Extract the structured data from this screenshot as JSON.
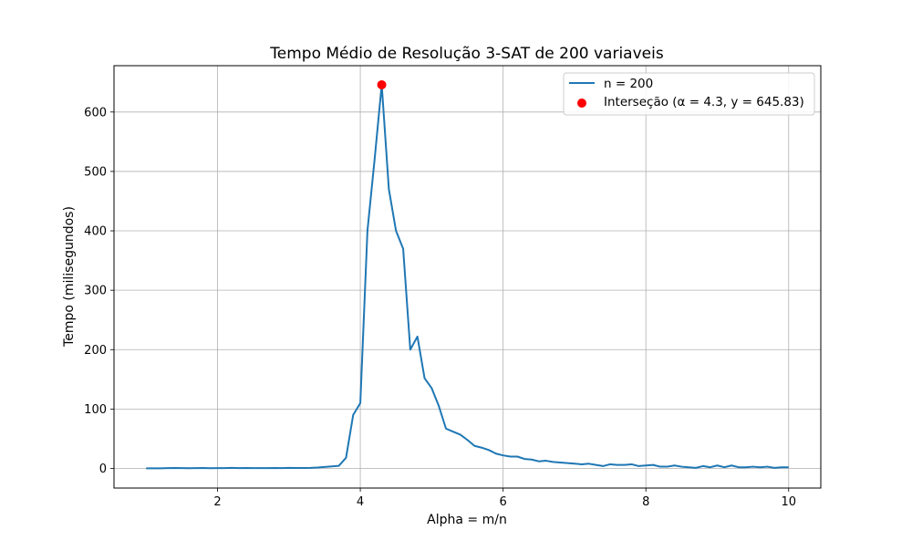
{
  "chart_data": {
    "type": "line",
    "title": "Tempo Médio de Resolução 3-SAT de 200 variaveis",
    "xlabel": "Alpha = m/n",
    "ylabel": "Tempo (milisegundos)",
    "xlim": [
      0.55,
      10.45
    ],
    "ylim": [
      -33,
      678
    ],
    "xticks": [
      2,
      4,
      6,
      8,
      10
    ],
    "yticks": [
      0,
      100,
      200,
      300,
      400,
      500,
      600
    ],
    "grid": true,
    "legend_position": "top-right",
    "colors": {
      "line": "#1f77b4",
      "marker": "#ff0000"
    },
    "series": [
      {
        "name": "n = 200",
        "x": [
          1.0,
          1.1,
          1.2,
          1.3,
          1.4,
          1.5,
          1.6,
          1.7,
          1.8,
          1.9,
          2.0,
          2.1,
          2.2,
          2.3,
          2.4,
          2.5,
          2.6,
          2.7,
          2.8,
          2.9,
          3.0,
          3.1,
          3.2,
          3.3,
          3.4,
          3.5,
          3.6,
          3.7,
          3.8,
          3.9,
          4.0,
          4.1,
          4.2,
          4.3,
          4.4,
          4.5,
          4.6,
          4.7,
          4.8,
          4.9,
          5.0,
          5.1,
          5.2,
          5.3,
          5.4,
          5.5,
          5.6,
          5.7,
          5.8,
          5.9,
          6.0,
          6.1,
          6.2,
          6.3,
          6.4,
          6.5,
          6.6,
          6.7,
          6.8,
          6.9,
          7.0,
          7.1,
          7.2,
          7.3,
          7.4,
          7.5,
          7.6,
          7.7,
          7.8,
          7.9,
          8.0,
          8.1,
          8.2,
          8.3,
          8.4,
          8.5,
          8.6,
          8.7,
          8.8,
          8.9,
          9.0,
          9.1,
          9.2,
          9.3,
          9.4,
          9.5,
          9.6,
          9.7,
          9.8,
          9.9,
          10.0
        ],
        "y": [
          0.2,
          0.3,
          0.3,
          0.5,
          0.8,
          0.6,
          0.4,
          0.5,
          0.7,
          0.4,
          0.5,
          0.6,
          0.9,
          0.5,
          0.8,
          0.6,
          0.5,
          0.6,
          0.7,
          0.5,
          0.9,
          0.7,
          0.8,
          1.0,
          1.5,
          2.5,
          3.5,
          4.5,
          18,
          90,
          110,
          400,
          520,
          645.83,
          470,
          400,
          370,
          200,
          222,
          152,
          135,
          105,
          67,
          62,
          57,
          48,
          38,
          35,
          31,
          25,
          22,
          20,
          20,
          16,
          15,
          12,
          13,
          11,
          10,
          9,
          8,
          7,
          8,
          6,
          4,
          7,
          6,
          6,
          7,
          4,
          5,
          6,
          3,
          3,
          5,
          3,
          2,
          1,
          4,
          2,
          5,
          2,
          5,
          2,
          2,
          3,
          2,
          3,
          1,
          2,
          2
        ]
      }
    ],
    "highlight": {
      "label": "Interseção (α = 4.3, y = 645.83)",
      "x": 4.3,
      "y": 645.83
    }
  }
}
